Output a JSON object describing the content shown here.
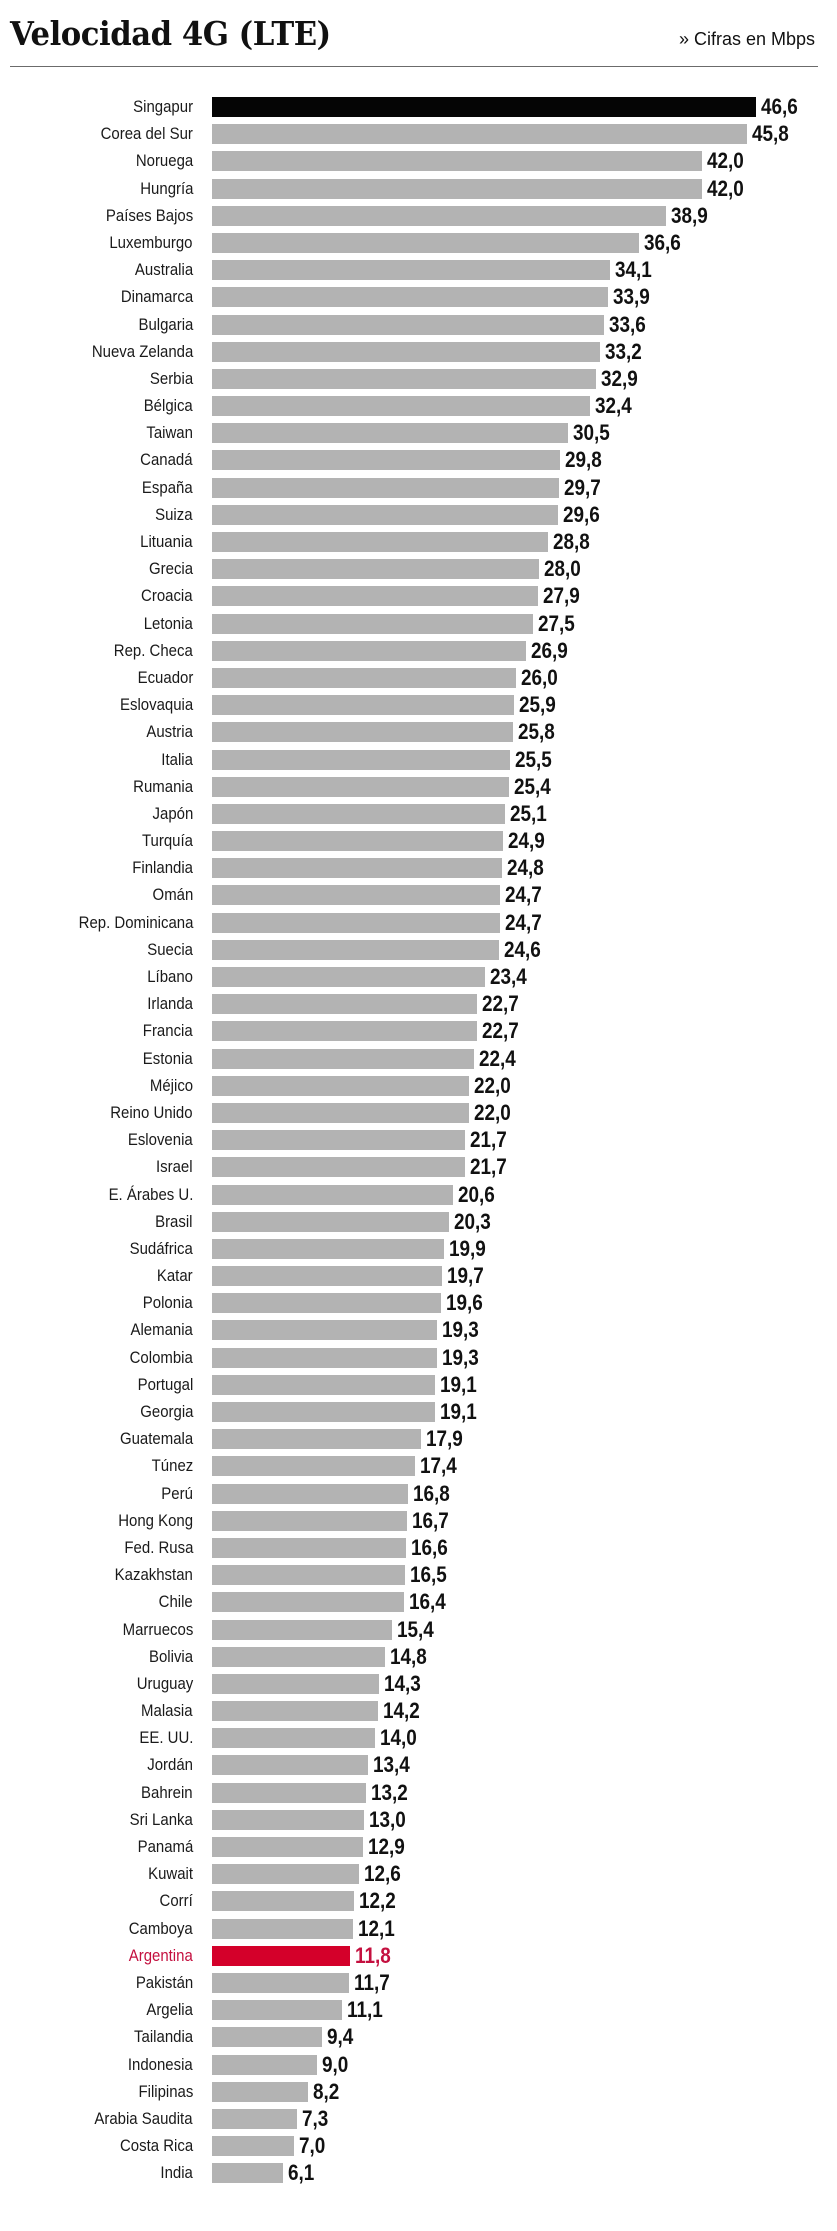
{
  "header": {
    "title": "Velocidad 4G (LTE)",
    "subtitle": "» Cifras en Mbps"
  },
  "colors": {
    "default_bar": "#b3b3b3",
    "top_bar": "#050505",
    "highlight_bar": "#d4002a",
    "highlight_text": "#c4103f"
  },
  "chart_data": {
    "type": "bar",
    "orientation": "horizontal",
    "title": "Velocidad 4G (LTE)",
    "subtitle": "» Cifras en Mbps",
    "xlabel": "",
    "ylabel": "",
    "unit": "Mbps",
    "xlim": [
      0,
      46.6
    ],
    "grid": false,
    "legend": null,
    "decimal_separator": ",",
    "highlighted": [
      "Singapur",
      "Argentina"
    ],
    "categories": [
      "Singapur",
      "Corea del Sur",
      "Noruega",
      "Hungría",
      "Países Bajos",
      "Luxemburgo",
      "Australia",
      "Dinamarca",
      "Bulgaria",
      "Nueva Zelanda",
      "Serbia",
      "Bélgica",
      "Taiwan",
      "Canadá",
      "España",
      "Suiza",
      "Lituania",
      "Grecia",
      "Croacia",
      "Letonia",
      "Rep. Checa",
      "Ecuador",
      "Eslovaquia",
      "Austria",
      "Italia",
      "Rumania",
      "Japón",
      "Turquía",
      "Finlandia",
      "Omán",
      "Rep. Dominicana",
      "Suecia",
      "Líbano",
      "Irlanda",
      "Francia",
      "Estonia",
      "Méjico",
      "Reino Unido",
      "Eslovenia",
      "Israel",
      "E. Árabes U.",
      "Brasil",
      "Sudáfrica",
      "Katar",
      "Polonia",
      "Alemania",
      "Colombia",
      "Portugal",
      "Georgia",
      "Guatemala",
      "Túnez",
      "Perú",
      "Hong Kong",
      "Fed. Rusa",
      "Kazakhstan",
      "Chile",
      "Marruecos",
      "Bolivia",
      "Uruguay",
      "Malasia",
      "EE. UU.",
      "Jordán",
      "Bahrein",
      "Sri Lanka",
      "Panamá",
      "Kuwait",
      "Corrí",
      "Camboya",
      "Argentina",
      "Pakistán",
      "Argelia",
      "Tailandia",
      "Indonesia",
      "Filipinas",
      "Arabia Saudita",
      "Costa Rica",
      "India"
    ],
    "values": [
      46.6,
      45.8,
      42.0,
      42.0,
      38.9,
      36.6,
      34.1,
      33.9,
      33.6,
      33.2,
      32.9,
      32.4,
      30.5,
      29.8,
      29.7,
      29.6,
      28.8,
      28.0,
      27.9,
      27.5,
      26.9,
      26.0,
      25.9,
      25.8,
      25.5,
      25.4,
      25.1,
      24.9,
      24.8,
      24.7,
      24.7,
      24.6,
      23.4,
      22.7,
      22.7,
      22.4,
      22.0,
      22.0,
      21.7,
      21.7,
      20.6,
      20.3,
      19.9,
      19.7,
      19.6,
      19.3,
      19.3,
      19.1,
      19.1,
      17.9,
      17.4,
      16.8,
      16.7,
      16.6,
      16.5,
      16.4,
      15.4,
      14.8,
      14.3,
      14.2,
      14.0,
      13.4,
      13.2,
      13.0,
      12.9,
      12.6,
      12.2,
      12.1,
      11.8,
      11.7,
      11.1,
      9.4,
      9.0,
      8.2,
      7.3,
      7.0,
      6.1
    ],
    "value_labels": [
      "46,6",
      "45,8",
      "42,0",
      "42,0",
      "38,9",
      "36,6",
      "34,1",
      "33,9",
      "33,6",
      "33,2",
      "32,9",
      "32,4",
      "30,5",
      "29,8",
      "29,7",
      "29,6",
      "28,8",
      "28,0",
      "27,9",
      "27,5",
      "26,9",
      "26,0",
      "25,9",
      "25,8",
      "25,5",
      "25,4",
      "25,1",
      "24,9",
      "24,8",
      "24,7",
      "24,7",
      "24,6",
      "23,4",
      "22,7",
      "22,7",
      "22,4",
      "22,0",
      "22,0",
      "21,7",
      "21,7",
      "20,6",
      "20,3",
      "19,9",
      "19,7",
      "19,6",
      "19,3",
      "19,3",
      "19,1",
      "19,1",
      "17,9",
      "17,4",
      "16,8",
      "16,7",
      "16,6",
      "16,5",
      "16,4",
      "15,4",
      "14,8",
      "14,3",
      "14,2",
      "14,0",
      "13,4",
      "13,2",
      "13,0",
      "12,9",
      "12,6",
      "12,2",
      "12,1",
      "11,8",
      "11,7",
      "11,1",
      "9,4",
      "9,0",
      "8,2",
      "7,3",
      "7,0",
      "6,1"
    ]
  }
}
